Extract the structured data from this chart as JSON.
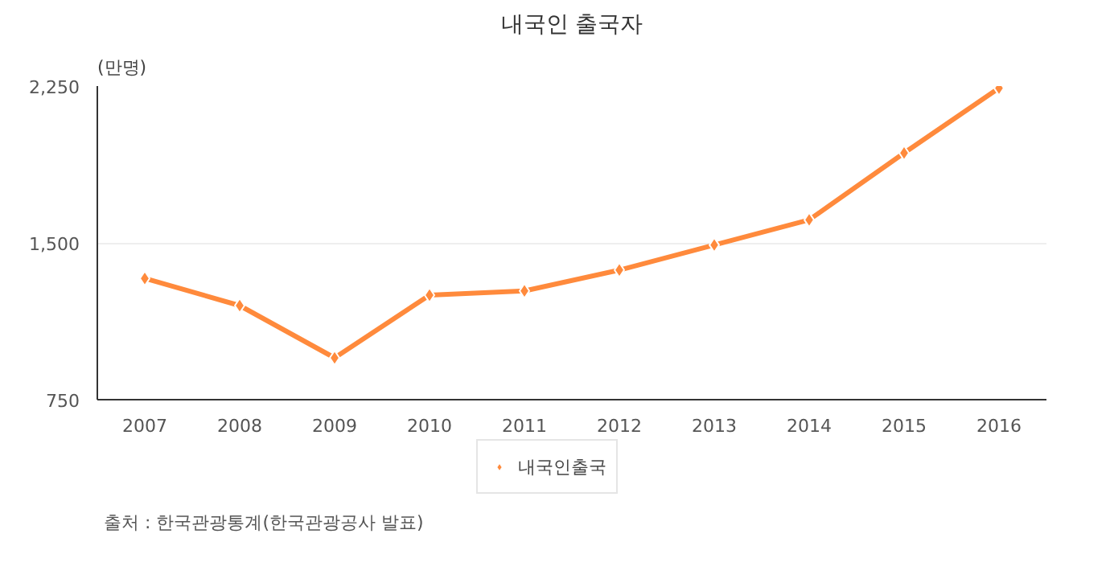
{
  "chart_data": {
    "type": "line",
    "title": "내국인 출국자",
    "ylabel": "(만명)",
    "categories": [
      "2007",
      "2008",
      "2009",
      "2010",
      "2011",
      "2012",
      "2013",
      "2014",
      "2015",
      "2016"
    ],
    "series": [
      {
        "name": "내국인출국",
        "color": "#ff8a3c",
        "values": [
          1330,
          1200,
          950,
          1250,
          1270,
          1370,
          1490,
          1610,
          1930,
          2240
        ]
      }
    ],
    "ylim": [
      750,
      2250
    ],
    "yticks": [
      750,
      {
        "value": 1500,
        "label": "1,500"
      },
      {
        "value": 2250,
        "label": "2,250"
      }
    ],
    "grid": "y",
    "legend": "bottom",
    "marker": "diamond",
    "line_style": "solid",
    "annotations": [
      "출처 : 한국관광통계(한국관광공사 발표)"
    ]
  }
}
